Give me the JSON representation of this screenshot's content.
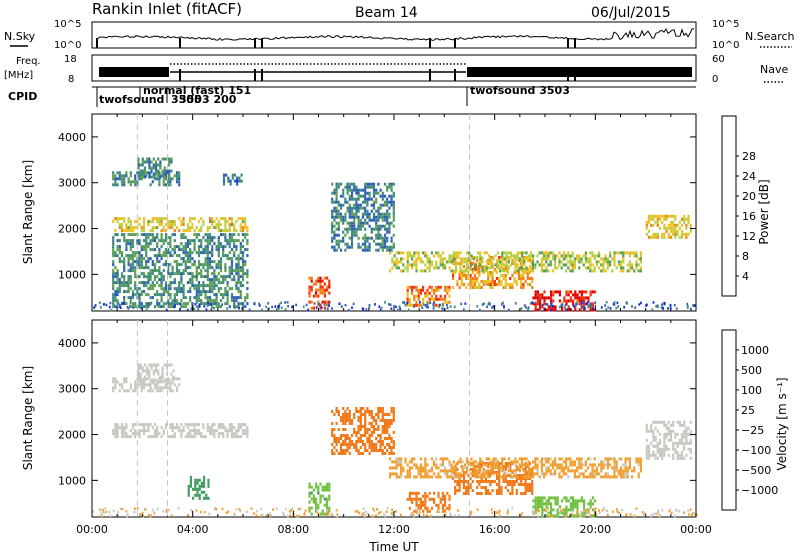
{
  "header": {
    "station": "Rankin Inlet (fitACF)",
    "beam": "Beam 14",
    "date": "06/Jul/2015"
  },
  "left_labels": {
    "nsky": "N.Sky",
    "freq_top": "Freq.",
    "freq_unit": "[MHz]",
    "cpid": "CPID"
  },
  "right_labels": {
    "nsearch": "N.Search",
    "nave": "Nave"
  },
  "noise_panel": {
    "ytick_top": "10^5",
    "ytick_bottom": "10^0",
    "rtick_top": "10^5",
    "rtick_bottom": "10^0"
  },
  "freq_panel": {
    "ytick_top": "18",
    "ytick_bottom": "8",
    "rtick_top": "60",
    "rtick_bottom": "0"
  },
  "cpid_labels": {
    "label1": "twofsound",
    "label2": "normal (fast)  151",
    "label3": "3505",
    "label4": "3503 200",
    "label5": "twofsound  3503"
  },
  "colors": {
    "power": [
      "#1a28e0",
      "#2f5fb5",
      "#3f8a7a",
      "#5aa050",
      "#b8d040",
      "#f0c020",
      "#f08018",
      "#f03010",
      "#e00000"
    ],
    "velocity": [
      "#1030c0",
      "#2f5fb5",
      "#3f9a60",
      "#70c040",
      "#c8c8c0",
      "#f0a030",
      "#f07818",
      "#f03010",
      "#e00000"
    ]
  },
  "chart_data": [
    {
      "type": "heatmap",
      "panel": "power",
      "xlabel": "",
      "ylabel": "Slant Range [km]",
      "yticks": [
        "1000",
        "2000",
        "3000",
        "4000"
      ],
      "ylim": [
        200,
        4500
      ],
      "xlim": [
        0,
        24
      ],
      "colorbar": {
        "label": "Power [dB]",
        "ticks": [
          "4",
          "8",
          "12",
          "16",
          "20",
          "24",
          "28"
        ],
        "range": [
          0,
          30
        ]
      },
      "regions": [
        {
          "t": [
            0.8,
            6.2
          ],
          "r": [
            1950,
            2250
          ],
          "value": 17
        },
        {
          "t": [
            0.8,
            3.5
          ],
          "r": [
            2950,
            3250
          ],
          "value": 8
        },
        {
          "t": [
            1.8,
            3.2
          ],
          "r": [
            3150,
            3550
          ],
          "value": 9
        },
        {
          "t": [
            5.2,
            5.9
          ],
          "r": [
            2950,
            3200
          ],
          "value": 6
        },
        {
          "t": [
            8.6,
            9.4
          ],
          "r": [
            250,
            950
          ],
          "value": 24
        },
        {
          "t": [
            12.5,
            14.2
          ],
          "r": [
            350,
            750
          ],
          "value": 22
        },
        {
          "t": [
            14.3,
            17.5
          ],
          "r": [
            700,
            1400
          ],
          "value": 20
        },
        {
          "t": [
            17.5,
            20.0
          ],
          "r": [
            250,
            650
          ],
          "value": 27
        },
        {
          "t": [
            11.8,
            21.8
          ],
          "r": [
            1100,
            1500
          ],
          "value": 15
        },
        {
          "t": [
            22.0,
            23.8
          ],
          "r": [
            1800,
            2300
          ],
          "value": 17
        },
        {
          "t": [
            0.8,
            6.2
          ],
          "r": [
            300,
            1900
          ],
          "value": 9
        },
        {
          "t": [
            9.5,
            12.0
          ],
          "r": [
            1500,
            3000
          ],
          "value": 8
        }
      ]
    },
    {
      "type": "heatmap",
      "panel": "velocity",
      "xlabel": "Time UT",
      "xticks": [
        "00:00",
        "04:00",
        "08:00",
        "12:00",
        "16:00",
        "20:00",
        "00:00"
      ],
      "ylabel": "Slant Range [km]",
      "yticks": [
        "1000",
        "2000",
        "3000",
        "4000"
      ],
      "ylim": [
        200,
        4500
      ],
      "xlim": [
        0,
        24
      ],
      "colorbar": {
        "label": "Velocity  [m s⁻¹]",
        "ticks": [
          "1000",
          "500",
          "100",
          "25",
          "−25",
          "−100",
          "−500",
          "−1000"
        ]
      },
      "regions": [
        {
          "t": [
            0.8,
            6.2
          ],
          "r": [
            1950,
            2250
          ],
          "value": 0
        },
        {
          "t": [
            0.8,
            3.5
          ],
          "r": [
            2950,
            3250
          ],
          "value": 0
        },
        {
          "t": [
            1.8,
            3.2
          ],
          "r": [
            3150,
            3550
          ],
          "value": 0
        },
        {
          "t": [
            8.6,
            9.4
          ],
          "r": [
            250,
            950
          ],
          "value": 80
        },
        {
          "t": [
            12.5,
            14.2
          ],
          "r": [
            350,
            750
          ],
          "value": -300
        },
        {
          "t": [
            14.3,
            17.5
          ],
          "r": [
            700,
            1400
          ],
          "value": -300
        },
        {
          "t": [
            17.5,
            20.0
          ],
          "r": [
            250,
            650
          ],
          "value": 50
        },
        {
          "t": [
            9.5,
            12.0
          ],
          "r": [
            1600,
            2600
          ],
          "value": -300
        },
        {
          "t": [
            11.8,
            21.8
          ],
          "r": [
            1100,
            1500
          ],
          "value": -40
        },
        {
          "t": [
            22.0,
            23.8
          ],
          "r": [
            1500,
            2300
          ],
          "value": 0
        },
        {
          "t": [
            3.8,
            4.6
          ],
          "r": [
            600,
            1100
          ],
          "value": 300
        }
      ]
    }
  ]
}
